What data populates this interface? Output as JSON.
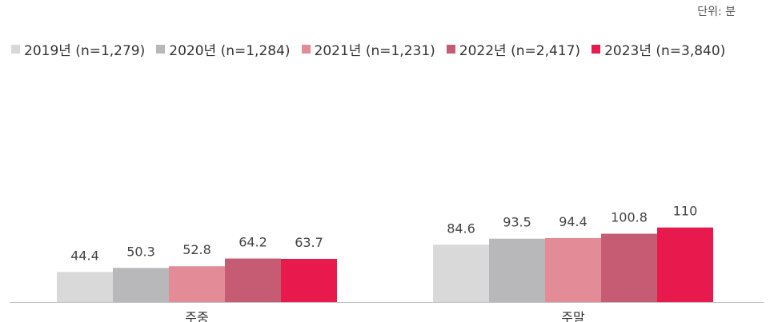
{
  "unit_label": "단위: 분",
  "chart_data": {
    "type": "bar",
    "categories": [
      "주중",
      "주말"
    ],
    "series": [
      {
        "name": "2019년 (n=1,279)",
        "color": "#d9d9d9",
        "values": [
          44.4,
          84.6
        ],
        "labels": [
          "44.4",
          "84.6"
        ]
      },
      {
        "name": "2020년 (n=1,284)",
        "color": "#b8b7ba",
        "values": [
          50.3,
          93.5
        ],
        "labels": [
          "50.3",
          "93.5"
        ]
      },
      {
        "name": "2021년 (n=1,231)",
        "color": "#e38b96",
        "values": [
          52.8,
          94.4
        ],
        "labels": [
          "52.8",
          "94.4"
        ]
      },
      {
        "name": "2022년 (n=2,417)",
        "color": "#c65b74",
        "values": [
          64.2,
          100.8
        ],
        "labels": [
          "64.2",
          "100.8"
        ]
      },
      {
        "name": "2023년 (n=3,840)",
        "color": "#e8194c",
        "values": [
          63.7,
          110
        ],
        "labels": [
          "63.7",
          "110"
        ]
      }
    ],
    "ylim": [
      0,
      125
    ],
    "grid": false,
    "legend_position": "top"
  }
}
